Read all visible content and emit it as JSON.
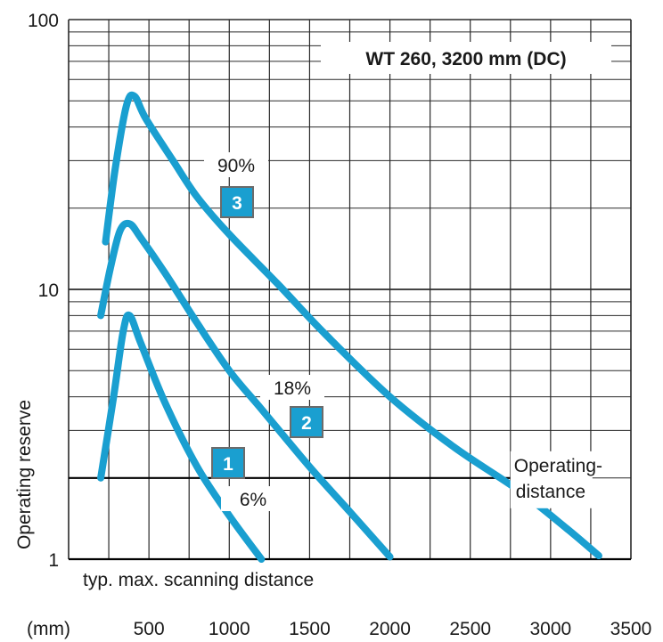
{
  "chart_data": {
    "type": "line",
    "title": "WT 260, 3200 mm (DC)",
    "xlabel": "",
    "ylabel": "Operating reserve",
    "x_unit": "(mm)",
    "x_ticks": [
      "500",
      "1000",
      "1500",
      "2000",
      "2500",
      "3000",
      "3500"
    ],
    "y_ticks": [
      "1",
      "10",
      "100"
    ],
    "xlim": [
      0,
      3500
    ],
    "ylim": [
      1,
      100
    ],
    "y_scale": "log",
    "grid": true,
    "line_color": "#1a9fd0",
    "badge_color": "#1a9fd0",
    "series": [
      {
        "name": "6%",
        "badge": "1",
        "points": [
          [
            200,
            2.0
          ],
          [
            280,
            4.0
          ],
          [
            340,
            7.0
          ],
          [
            380,
            8.0
          ],
          [
            450,
            6.3
          ],
          [
            600,
            3.8
          ],
          [
            800,
            2.2
          ],
          [
            1000,
            1.45
          ],
          [
            1200,
            1.0
          ]
        ]
      },
      {
        "name": "18%",
        "badge": "2",
        "points": [
          [
            200,
            8.0
          ],
          [
            260,
            12.0
          ],
          [
            320,
            16.5
          ],
          [
            380,
            17.5
          ],
          [
            450,
            15.5
          ],
          [
            600,
            11.5
          ],
          [
            800,
            7.5
          ],
          [
            1000,
            5.0
          ],
          [
            1200,
            3.6
          ],
          [
            1500,
            2.2
          ],
          [
            1750,
            1.5
          ],
          [
            2000,
            1.02
          ]
        ]
      },
      {
        "name": "90%",
        "badge": "3",
        "points": [
          [
            230,
            15.0
          ],
          [
            290,
            28.0
          ],
          [
            360,
            48.0
          ],
          [
            410,
            52.0
          ],
          [
            480,
            43.0
          ],
          [
            650,
            30.0
          ],
          [
            800,
            22.0
          ],
          [
            1000,
            16.0
          ],
          [
            1300,
            10.5
          ],
          [
            1600,
            6.8
          ],
          [
            2000,
            4.0
          ],
          [
            2400,
            2.6
          ],
          [
            2800,
            1.8
          ],
          [
            3100,
            1.3
          ],
          [
            3300,
            1.03
          ]
        ]
      }
    ],
    "reference_lines": [
      {
        "name": "Operating-distance",
        "y": 2.0,
        "xmax": 2750,
        "label_lines": [
          "Operating-",
          "distance"
        ]
      },
      {
        "name": "typ. max. scanning distance",
        "y": 1.0,
        "xmax": 3500,
        "label_lines": [
          "typ. max. scanning distance"
        ]
      }
    ]
  }
}
